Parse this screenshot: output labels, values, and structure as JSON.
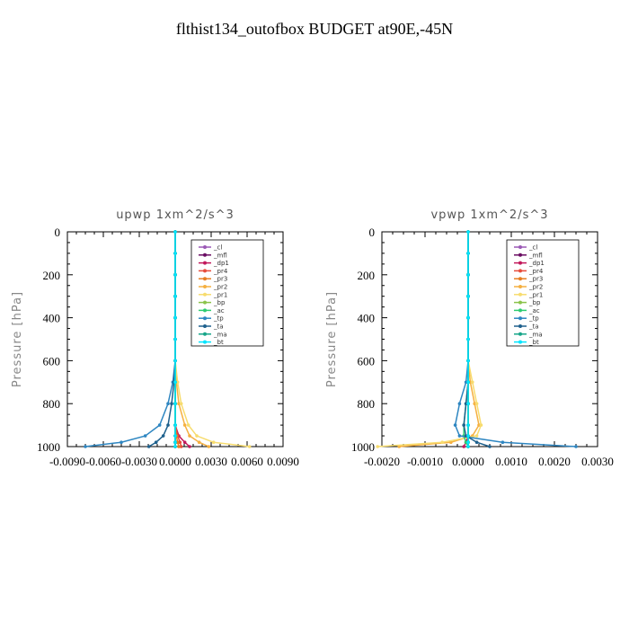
{
  "title": "flthist134_outofbox  BUDGET at90E,-45N",
  "chart_data": [
    {
      "type": "line",
      "title": "upwp   1xm^2/s^3",
      "ylabel": "Pressure  [hPa]",
      "xlim": [
        -0.009,
        0.009
      ],
      "ylim": [
        1000,
        0
      ],
      "xticks": [
        "-0.0090",
        "-0.0060",
        "-0.0030",
        "0.0000",
        "0.0030",
        "0.0060",
        "0.0090"
      ],
      "yticks": [
        "0",
        "200",
        "400",
        "600",
        "800",
        "1000"
      ],
      "series": [
        {
          "name": "_cl",
          "color": "#9b59b6",
          "x": [
            0,
            0,
            0,
            0,
            0,
            0,
            0,
            0,
            0,
            0,
            0,
            0,
            0
          ],
          "y": [
            0,
            100,
            200,
            300,
            400,
            500,
            600,
            700,
            800,
            900,
            950,
            980,
            1000
          ]
        },
        {
          "name": "_mfl",
          "color": "#6a0d63",
          "x": [
            0,
            0,
            0,
            0,
            0,
            0,
            0,
            0,
            0,
            0,
            0,
            0,
            0
          ],
          "y": [
            0,
            100,
            200,
            300,
            400,
            500,
            600,
            700,
            800,
            900,
            950,
            980,
            1000
          ]
        },
        {
          "name": "_dp1",
          "color": "#c2185b",
          "x": [
            0,
            0,
            0,
            0,
            0,
            0,
            0,
            0,
            0,
            0,
            0.0003,
            0.0008,
            0.0012
          ],
          "y": [
            0,
            100,
            200,
            300,
            400,
            500,
            600,
            700,
            800,
            900,
            950,
            980,
            1000
          ]
        },
        {
          "name": "_pr4",
          "color": "#e74c3c",
          "x": [
            0,
            0,
            0,
            0,
            0,
            0,
            0,
            0,
            0,
            0,
            0.0002,
            0.0004,
            0.0005
          ],
          "y": [
            0,
            100,
            200,
            300,
            400,
            500,
            600,
            700,
            800,
            900,
            950,
            980,
            1000
          ]
        },
        {
          "name": "_pr3",
          "color": "#e67e22",
          "x": [
            0,
            0,
            0,
            0,
            0,
            0,
            0,
            0,
            0,
            0,
            0.0001,
            0.0002,
            0.0003
          ],
          "y": [
            0,
            100,
            200,
            300,
            400,
            500,
            600,
            700,
            800,
            900,
            950,
            980,
            1000
          ]
        },
        {
          "name": "_pr2",
          "color": "#f5b041",
          "x": [
            0,
            0,
            0,
            0,
            0,
            0,
            0,
            0.0001,
            0.0003,
            0.0008,
            0.0012,
            0.002,
            0.0028
          ],
          "y": [
            0,
            100,
            200,
            300,
            400,
            500,
            600,
            700,
            800,
            900,
            950,
            980,
            1000
          ]
        },
        {
          "name": "_pr1",
          "color": "#f7dc6f",
          "x": [
            0,
            0,
            0,
            0,
            0,
            0,
            0,
            0.0002,
            0.0005,
            0.0011,
            0.0018,
            0.0032,
            0.0062
          ],
          "y": [
            0,
            100,
            200,
            300,
            400,
            500,
            600,
            700,
            800,
            900,
            950,
            980,
            1000
          ]
        },
        {
          "name": "_bp",
          "color": "#8bc34a",
          "x": [
            0,
            0,
            0,
            0,
            0,
            0,
            0,
            0,
            0,
            0,
            0,
            0,
            0
          ],
          "y": [
            0,
            100,
            200,
            300,
            400,
            500,
            600,
            700,
            800,
            900,
            950,
            980,
            1000
          ]
        },
        {
          "name": "_ac",
          "color": "#2ecc71",
          "x": [
            0,
            0,
            0,
            0,
            0,
            0,
            0,
            0,
            0,
            0,
            0,
            0,
            0
          ],
          "y": [
            0,
            100,
            200,
            300,
            400,
            500,
            600,
            700,
            800,
            900,
            950,
            980,
            1000
          ]
        },
        {
          "name": "_tp",
          "color": "#2e86c1",
          "x": [
            0,
            0,
            0,
            0,
            0,
            0,
            0,
            -0.0002,
            -0.0006,
            -0.0013,
            -0.0025,
            -0.0045,
            -0.0075
          ],
          "y": [
            0,
            100,
            200,
            300,
            400,
            500,
            600,
            700,
            800,
            900,
            950,
            980,
            1000
          ]
        },
        {
          "name": "_ta",
          "color": "#1f618d",
          "x": [
            0,
            0,
            0,
            0,
            0,
            0,
            0,
            -0.0001,
            -0.0003,
            -0.0006,
            -0.001,
            -0.0016,
            -0.0022
          ],
          "y": [
            0,
            100,
            200,
            300,
            400,
            500,
            600,
            700,
            800,
            900,
            950,
            980,
            1000
          ]
        },
        {
          "name": "_ma",
          "color": "#17a589",
          "x": [
            0,
            0,
            0,
            0,
            0,
            0,
            0,
            0,
            0,
            0,
            0,
            0,
            0
          ],
          "y": [
            0,
            100,
            200,
            300,
            400,
            500,
            600,
            700,
            800,
            900,
            950,
            980,
            1000
          ]
        },
        {
          "name": "_bt",
          "color": "#00e5ff",
          "x": [
            0,
            0,
            0,
            0,
            0,
            0,
            0,
            0,
            0,
            0,
            0,
            0,
            0
          ],
          "y": [
            0,
            100,
            200,
            300,
            400,
            500,
            600,
            700,
            800,
            900,
            950,
            980,
            1000
          ]
        }
      ]
    },
    {
      "type": "line",
      "title": "vpwp   1xm^2/s^3",
      "ylabel": "Pressure  [hPa]",
      "xlim": [
        -0.002,
        0.003
      ],
      "ylim": [
        1000,
        0
      ],
      "xticks": [
        "-0.0020",
        "-0.0010",
        "0.0000",
        "0.0010",
        "0.0020",
        "0.0030"
      ],
      "yticks": [
        "0",
        "200",
        "400",
        "600",
        "800",
        "1000"
      ],
      "series": [
        {
          "name": "_cl",
          "color": "#9b59b6",
          "x": [
            0,
            0,
            0,
            0,
            0,
            0,
            0,
            0,
            0,
            0,
            0,
            0,
            0
          ],
          "y": [
            0,
            100,
            200,
            300,
            400,
            500,
            600,
            700,
            800,
            900,
            950,
            980,
            1000
          ]
        },
        {
          "name": "_mfl",
          "color": "#6a0d63",
          "x": [
            0,
            0,
            0,
            0,
            0,
            0,
            0,
            0,
            0,
            0,
            0,
            0,
            0
          ],
          "y": [
            0,
            100,
            200,
            300,
            400,
            500,
            600,
            700,
            800,
            900,
            950,
            980,
            1000
          ]
        },
        {
          "name": "_dp1",
          "color": "#c2185b",
          "x": [
            0,
            0,
            0,
            0,
            0,
            0,
            0,
            0,
            0,
            0,
            0,
            -5e-05,
            -0.0001
          ],
          "y": [
            0,
            100,
            200,
            300,
            400,
            500,
            600,
            700,
            800,
            900,
            950,
            980,
            1000
          ]
        },
        {
          "name": "_pr4",
          "color": "#e74c3c",
          "x": [
            0,
            0,
            0,
            0,
            0,
            0,
            0,
            0,
            0,
            0,
            0,
            0,
            0
          ],
          "y": [
            0,
            100,
            200,
            300,
            400,
            500,
            600,
            700,
            800,
            900,
            950,
            980,
            1000
          ]
        },
        {
          "name": "_pr3",
          "color": "#e67e22",
          "x": [
            0,
            0,
            0,
            0,
            0,
            0,
            0,
            0,
            0,
            0,
            0,
            0,
            0
          ],
          "y": [
            0,
            100,
            200,
            300,
            400,
            500,
            600,
            700,
            800,
            900,
            950,
            980,
            1000
          ]
        },
        {
          "name": "_pr2",
          "color": "#f5b041",
          "x": [
            0,
            0,
            0,
            0,
            0,
            0,
            0,
            5e-05,
            0.00015,
            0.00025,
            0.0001,
            -0.0004,
            -0.0016
          ],
          "y": [
            0,
            100,
            200,
            300,
            400,
            500,
            600,
            700,
            800,
            900,
            950,
            980,
            1000
          ]
        },
        {
          "name": "_pr1",
          "color": "#f7dc6f",
          "x": [
            0,
            0,
            0,
            0,
            0,
            0,
            0,
            0.0001,
            0.0002,
            0.0003,
            0.0002,
            -0.0006,
            -0.0021
          ],
          "y": [
            0,
            100,
            200,
            300,
            400,
            500,
            600,
            700,
            800,
            900,
            950,
            980,
            1000
          ]
        },
        {
          "name": "_bp",
          "color": "#8bc34a",
          "x": [
            0,
            0,
            0,
            0,
            0,
            0,
            0,
            0,
            0,
            0,
            0,
            0,
            0
          ],
          "y": [
            0,
            100,
            200,
            300,
            400,
            500,
            600,
            700,
            800,
            900,
            950,
            980,
            1000
          ]
        },
        {
          "name": "_ac",
          "color": "#2ecc71",
          "x": [
            0,
            0,
            0,
            0,
            0,
            0,
            0,
            0,
            -5e-05,
            -0.0001,
            -0.0001,
            -5e-05,
            0
          ],
          "y": [
            0,
            100,
            200,
            300,
            400,
            500,
            600,
            700,
            800,
            900,
            950,
            980,
            1000
          ]
        },
        {
          "name": "_tp",
          "color": "#2e86c1",
          "x": [
            0,
            0,
            0,
            0,
            0,
            0,
            0,
            -5e-05,
            -0.0002,
            -0.0003,
            -0.0002,
            0.0008,
            0.0025
          ],
          "y": [
            0,
            100,
            200,
            300,
            400,
            500,
            600,
            700,
            800,
            900,
            950,
            980,
            1000
          ]
        },
        {
          "name": "_ta",
          "color": "#1f618d",
          "x": [
            0,
            0,
            0,
            0,
            0,
            0,
            0,
            0,
            -5e-05,
            -0.0001,
            -5e-05,
            0.0002,
            0.0005
          ],
          "y": [
            0,
            100,
            200,
            300,
            400,
            500,
            600,
            700,
            800,
            900,
            950,
            980,
            1000
          ]
        },
        {
          "name": "_ma",
          "color": "#17a589",
          "x": [
            0,
            0,
            0,
            0,
            0,
            0,
            0,
            0,
            0,
            0,
            0,
            0,
            0
          ],
          "y": [
            0,
            100,
            200,
            300,
            400,
            500,
            600,
            700,
            800,
            900,
            950,
            980,
            1000
          ]
        },
        {
          "name": "_bt",
          "color": "#00e5ff",
          "x": [
            0,
            0,
            0,
            0,
            0,
            0,
            0,
            0,
            0,
            0,
            0,
            0,
            0
          ],
          "y": [
            0,
            100,
            200,
            300,
            400,
            500,
            600,
            700,
            800,
            900,
            950,
            980,
            1000
          ]
        }
      ]
    }
  ]
}
